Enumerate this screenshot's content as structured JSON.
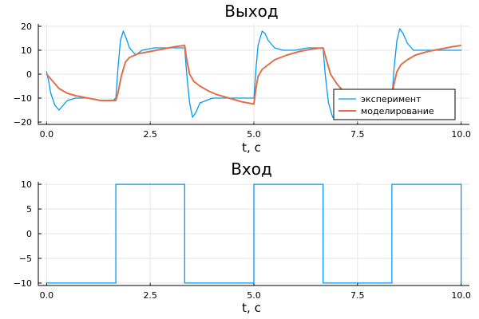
{
  "chart_data": [
    {
      "type": "line",
      "title": "Выход",
      "xlabel": "t, с",
      "ylabel": "",
      "xlim": [
        -0.2,
        10.2
      ],
      "ylim": [
        -21,
        21
      ],
      "xticks": [
        0.0,
        2.5,
        5.0,
        7.5,
        10.0
      ],
      "xtick_labels": [
        "0.0",
        "2.5",
        "5.0",
        "7.5",
        "10.0"
      ],
      "yticks": [
        -20,
        -10,
        0,
        10,
        20
      ],
      "ytick_labels": [
        "−20",
        "−10",
        "0",
        "10",
        "20"
      ],
      "grid": true,
      "legend": "bottom-right",
      "series": [
        {
          "name": "эксперимент",
          "color": "#009AFA",
          "x": [
            0.0,
            0.05,
            0.1,
            0.2,
            0.3,
            0.4,
            0.5,
            0.7,
            1.0,
            1.3,
            1.6,
            1.67,
            1.72,
            1.78,
            1.85,
            1.92,
            2.0,
            2.15,
            2.3,
            2.6,
            3.0,
            3.33,
            3.38,
            3.45,
            3.52,
            3.6,
            3.7,
            3.85,
            4.0,
            4.3,
            4.7,
            5.0,
            5.05,
            5.1,
            5.2,
            5.27,
            5.35,
            5.5,
            5.7,
            6.0,
            6.3,
            6.67,
            6.72,
            6.8,
            6.9,
            7.0,
            7.1,
            7.2,
            7.35,
            7.6,
            8.0,
            8.33,
            8.38,
            8.45,
            8.52,
            8.6,
            8.7,
            8.85,
            9.0,
            9.3,
            9.7,
            10.0
          ],
          "y": [
            1,
            -3,
            -8,
            -13,
            -15,
            -13,
            -11,
            -10,
            -10,
            -11,
            -11,
            -10,
            2,
            14,
            18,
            15,
            11,
            8,
            10,
            11,
            11,
            11,
            0,
            -12,
            -18,
            -16,
            -12,
            -11,
            -10,
            -10,
            -10,
            -10,
            2,
            12,
            18,
            17,
            14,
            11,
            10,
            10,
            11,
            11,
            0,
            -12,
            -18,
            -18,
            -16,
            -12,
            -10,
            -10,
            -10,
            -10,
            2,
            14,
            19,
            17,
            13,
            10,
            10,
            10,
            10,
            10
          ]
        },
        {
          "name": "моделирование",
          "color": "#E26F46",
          "x": [
            0.0,
            0.05,
            0.1,
            0.2,
            0.3,
            0.5,
            0.7,
            1.0,
            1.3,
            1.67,
            1.72,
            1.8,
            1.9,
            2.0,
            2.2,
            2.5,
            2.8,
            3.1,
            3.33,
            3.38,
            3.45,
            3.55,
            3.7,
            3.9,
            4.1,
            4.4,
            4.7,
            5.0,
            5.05,
            5.1,
            5.2,
            5.35,
            5.5,
            5.8,
            6.1,
            6.4,
            6.67,
            6.75,
            6.85,
            7.0,
            7.2,
            7.5,
            7.8,
            8.1,
            8.33,
            8.37,
            8.45,
            8.55,
            8.7,
            8.9,
            9.2,
            9.5,
            9.8,
            10.0
          ],
          "y": [
            0,
            -1,
            -2,
            -4,
            -6,
            -8,
            -9,
            -10,
            -11,
            -11,
            -8,
            -1,
            5,
            7,
            8.5,
            9.5,
            10.5,
            11.5,
            12,
            6,
            0,
            -3,
            -5,
            -7,
            -8.5,
            -10,
            -11.5,
            -12.5,
            -6,
            -1,
            2,
            4,
            6,
            8,
            9.5,
            10.5,
            11,
            6,
            0,
            -4,
            -8,
            -10.5,
            -12,
            -13,
            -14,
            -5,
            1,
            4,
            6,
            8,
            9.5,
            10.5,
            11.5,
            12
          ]
        }
      ]
    },
    {
      "type": "line",
      "title": "Вход",
      "xlabel": "t, с",
      "ylabel": "",
      "xlim": [
        -0.2,
        10.2
      ],
      "ylim": [
        -10.5,
        10.5
      ],
      "xticks": [
        0.0,
        2.5,
        5.0,
        7.5,
        10.0
      ],
      "xtick_labels": [
        "0.0",
        "2.5",
        "5.0",
        "7.5",
        "10.0"
      ],
      "yticks": [
        -10,
        -5,
        0,
        5,
        10
      ],
      "ytick_labels": [
        "−10",
        "−5",
        "0",
        "5",
        "10"
      ],
      "grid": true,
      "legend": "none",
      "series": [
        {
          "color": "#009AFA",
          "x": [
            0.0,
            1.67,
            1.67,
            3.33,
            3.33,
            5.0,
            5.0,
            6.67,
            6.67,
            8.33,
            8.33,
            10.0,
            10.0
          ],
          "y": [
            -10,
            -10,
            10,
            10,
            -10,
            -10,
            10,
            10,
            -10,
            -10,
            10,
            10,
            -10
          ]
        }
      ]
    }
  ]
}
